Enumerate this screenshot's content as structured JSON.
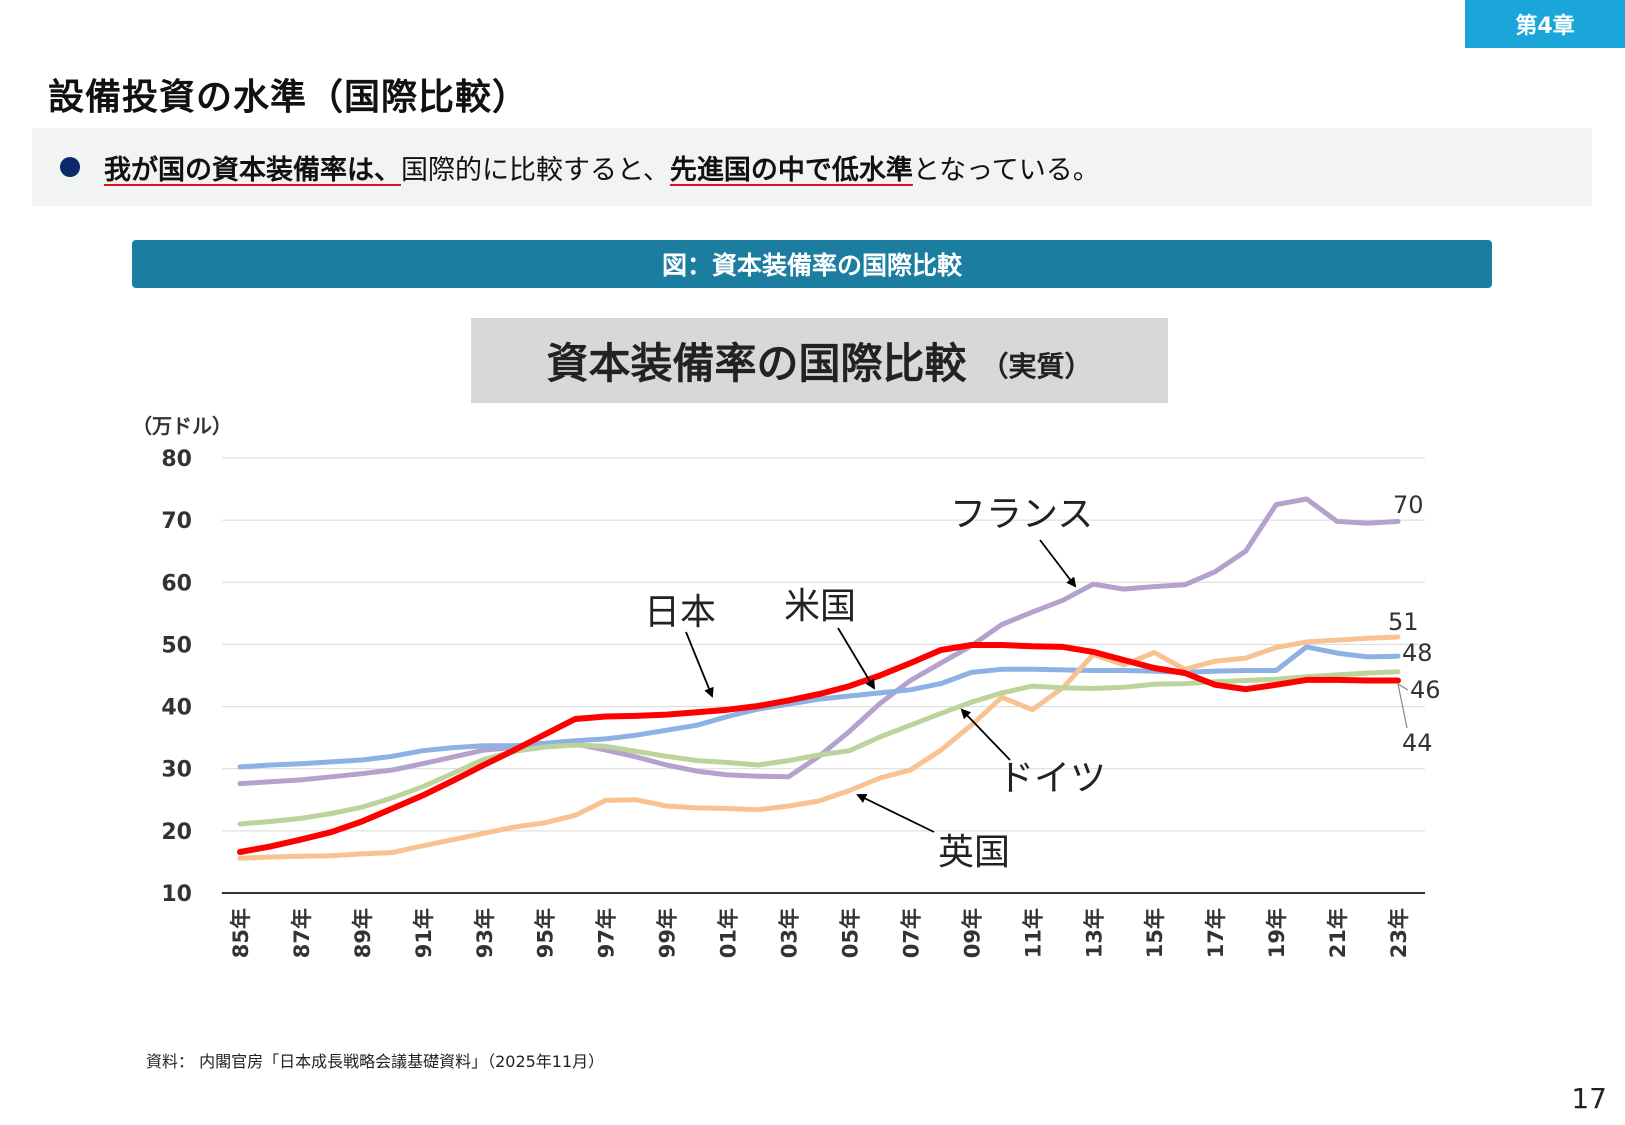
{
  "header": {
    "chapter": "第4章",
    "title": "設備投資の水準（国際比較）"
  },
  "summary": {
    "part1": "我が国の資本装備率は、",
    "part2": "国際的に比較すると、",
    "part3": "先進国の中で低水準",
    "part4": "となっている。"
  },
  "figure_label": "図：資本装備率の国際比較",
  "chart_title": {
    "main": "資本装備率の国際比較",
    "sub": "（実質）"
  },
  "source": "資料： 内閣官房「日本成長戦略会議基礎資料」（2025年11月）",
  "page_number": "17",
  "chart_data": {
    "type": "line",
    "ylabel": "（万ドル）",
    "ylim": [
      10,
      80
    ],
    "yticks": [
      80,
      70,
      60,
      50,
      40,
      30,
      20,
      10
    ],
    "x": [
      "85年",
      "86年",
      "87年",
      "88年",
      "89年",
      "90年",
      "91年",
      "92年",
      "93年",
      "94年",
      "95年",
      "96年",
      "97年",
      "98年",
      "99年",
      "00年",
      "01年",
      "02年",
      "03年",
      "04年",
      "05年",
      "06年",
      "07年",
      "08年",
      "09年",
      "10年",
      "11年",
      "12年",
      "13年",
      "14年",
      "15年",
      "16年",
      "17年",
      "18年",
      "19年",
      "20年",
      "21年",
      "22年",
      "23年"
    ],
    "xtick_labels": [
      "85年",
      "87年",
      "89年",
      "91年",
      "93年",
      "95年",
      "97年",
      "99年",
      "01年",
      "03年",
      "05年",
      "07年",
      "09年",
      "11年",
      "13年",
      "15年",
      "17年",
      "19年",
      "21年",
      "23年"
    ],
    "grid": true,
    "series": [
      {
        "name": "フランス",
        "color": "#b4a2cc",
        "values": [
          27.6,
          27.9,
          28.2,
          28.7,
          29.2,
          29.8,
          30.8,
          31.9,
          33.0,
          33.4,
          33.8,
          34.0,
          33.0,
          31.9,
          30.6,
          29.6,
          29.0,
          28.8,
          28.7,
          32.0,
          36.0,
          40.5,
          44.2,
          47.0,
          49.8,
          53.2,
          55.2,
          57.1,
          59.7,
          58.9,
          59.3,
          59.6,
          61.7,
          65.0,
          72.5,
          73.4,
          69.8,
          69.5,
          69.8
        ]
      },
      {
        "name": "米国",
        "color": "#8db1e2",
        "values": [
          30.3,
          30.6,
          30.8,
          31.1,
          31.4,
          32.0,
          32.9,
          33.4,
          33.7,
          33.7,
          34.1,
          34.5,
          34.8,
          35.4,
          36.2,
          37.0,
          38.4,
          39.6,
          40.4,
          41.2,
          41.7,
          42.2,
          42.7,
          43.7,
          45.5,
          46.0,
          46.0,
          45.9,
          45.8,
          45.8,
          45.7,
          45.5,
          45.7,
          45.8,
          45.8,
          49.6,
          48.6,
          48.0,
          48.1
        ]
      },
      {
        "name": "英国",
        "color": "#f8c293",
        "values": [
          15.6,
          15.8,
          15.9,
          16.0,
          16.3,
          16.5,
          17.6,
          18.6,
          19.6,
          20.6,
          21.3,
          22.5,
          24.9,
          25.0,
          24.0,
          23.7,
          23.6,
          23.4,
          24.0,
          24.8,
          26.5,
          28.5,
          29.8,
          33.0,
          37.0,
          41.5,
          39.5,
          43.0,
          48.4,
          46.7,
          48.7,
          46.0,
          47.3,
          47.8,
          49.5,
          50.4,
          50.7,
          51.0,
          51.2
        ]
      },
      {
        "name": "ドイツ",
        "color": "#bcd49c",
        "values": [
          21.1,
          21.5,
          22.0,
          22.8,
          23.8,
          25.3,
          27.1,
          29.3,
          31.5,
          32.8,
          33.5,
          33.8,
          33.6,
          32.8,
          32.0,
          31.3,
          31.0,
          30.6,
          31.3,
          32.2,
          32.9,
          35.1,
          37.0,
          38.9,
          40.7,
          42.2,
          43.3,
          43.0,
          42.9,
          43.1,
          43.6,
          43.7,
          44.0,
          44.2,
          44.4,
          44.8,
          45.1,
          45.4,
          45.6
        ]
      },
      {
        "name": "日本",
        "color": "#ff0000",
        "values": [
          16.6,
          17.5,
          18.6,
          19.8,
          21.5,
          23.6,
          25.7,
          28.1,
          30.6,
          33.0,
          35.5,
          38.0,
          38.4,
          38.5,
          38.7,
          39.1,
          39.5,
          40.1,
          41.0,
          42.0,
          43.3,
          45.0,
          47.0,
          49.1,
          49.9,
          49.9,
          49.7,
          49.6,
          48.8,
          47.5,
          46.2,
          45.4,
          43.5,
          42.8,
          43.5,
          44.3,
          44.3,
          44.2,
          44.2
        ]
      }
    ],
    "end_labels": [
      {
        "series": "フランス",
        "text": "70"
      },
      {
        "series": "英国",
        "text": "51"
      },
      {
        "series": "米国",
        "text": "48"
      },
      {
        "series": "ドイツ",
        "text": "46"
      },
      {
        "series": "日本",
        "text": "44"
      }
    ],
    "annotations": [
      {
        "text": "フランス"
      },
      {
        "text": "日本"
      },
      {
        "text": "米国"
      },
      {
        "text": "ドイツ"
      },
      {
        "text": "英国"
      }
    ]
  }
}
